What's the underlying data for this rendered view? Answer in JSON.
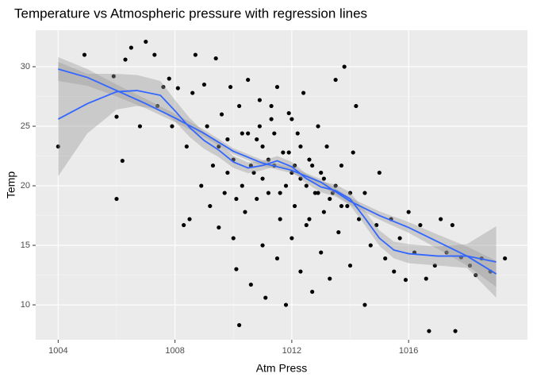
{
  "chart_data": {
    "type": "scatter",
    "title": "Temperature vs Atmospheric pressure with regression lines",
    "x_label": "Atm Press",
    "y_label": "Temp",
    "xlim": [
      1003.23,
      1020.07
    ],
    "ylim": [
      7.07,
      33.07
    ],
    "xticks": [
      1004,
      1008,
      1012,
      1016
    ],
    "yticks": [
      10,
      15,
      20,
      25,
      30
    ],
    "grid": true,
    "point_color": "#000000",
    "x": [
      1004.0,
      1004.9,
      1005.9,
      1006.0,
      1006.0,
      1006.2,
      1006.3,
      1006.5,
      1006.8,
      1007.0,
      1007.3,
      1007.4,
      1007.6,
      1007.8,
      1007.9,
      1008.1,
      1008.3,
      1008.5,
      1008.4,
      1008.6,
      1008.7,
      1008.9,
      1009.0,
      1009.1,
      1009.2,
      1009.3,
      1009.4,
      1009.5,
      1009.6,
      1009.7,
      1009.8,
      1009.9,
      1010.0,
      1010.0,
      1010.1,
      1010.2,
      1010.2,
      1010.3,
      1010.4,
      1010.5,
      1010.5,
      1010.6,
      1010.7,
      1010.8,
      1010.9,
      1011.0,
      1011.0,
      1011.1,
      1011.2,
      1011.3,
      1011.4,
      1011.5,
      1011.5,
      1011.6,
      1011.7,
      1011.8,
      1011.8,
      1011.9,
      1012.0,
      1012.0,
      1012.1,
      1012.2,
      1012.3,
      1012.3,
      1012.4,
      1012.5,
      1012.6,
      1012.7,
      1012.8,
      1012.9,
      1013.0,
      1013.0,
      1013.1,
      1013.2,
      1013.3,
      1013.4,
      1013.5,
      1013.6,
      1013.7,
      1013.8,
      1013.9,
      1014.0,
      1014.1,
      1014.2,
      1014.3,
      1014.5,
      1014.5,
      1014.7,
      1014.9,
      1015.0,
      1015.2,
      1015.4,
      1015.5,
      1015.7,
      1015.9,
      1016.0,
      1016.2,
      1016.4,
      1016.6,
      1016.7,
      1016.9,
      1017.1,
      1017.3,
      1017.5,
      1017.6,
      1017.8,
      1018.1,
      1018.3,
      1018.5,
      1018.8,
      1019.3,
      1010.6,
      1010.8,
      1011.0,
      1011.2,
      1011.4,
      1011.6,
      1011.9,
      1012.1,
      1012.3,
      1012.5,
      1012.7,
      1012.9,
      1013.1,
      1013.3,
      1013.5,
      1009.8,
      1010.3,
      1010.9,
      1011.3,
      1012.0,
      1009.5,
      1010.1,
      1013.7,
      1014.0,
      1012.6
    ],
    "y": [
      23.3,
      31.0,
      29.2,
      25.8,
      18.9,
      22.1,
      30.6,
      31.6,
      25.0,
      32.1,
      31.0,
      26.7,
      28.3,
      29.0,
      25.0,
      28.2,
      16.7,
      17.2,
      23.3,
      27.8,
      31.0,
      20.0,
      28.5,
      25.0,
      18.3,
      21.7,
      30.7,
      16.5,
      26.0,
      19.4,
      23.9,
      28.3,
      15.6,
      22.2,
      13.0,
      8.3,
      26.7,
      20.0,
      17.8,
      28.9,
      24.4,
      11.7,
      21.1,
      18.9,
      27.2,
      15.0,
      23.3,
      10.6,
      19.4,
      25.6,
      21.7,
      13.9,
      28.3,
      17.2,
      22.8,
      10.0,
      20.0,
      26.1,
      15.6,
      21.1,
      18.3,
      24.4,
      12.8,
      20.6,
      27.8,
      16.7,
      22.2,
      11.1,
      19.4,
      25.0,
      14.4,
      21.1,
      17.8,
      23.3,
      12.2,
      19.4,
      28.9,
      16.1,
      21.7,
      30.0,
      18.3,
      13.3,
      22.8,
      26.7,
      17.2,
      10.0,
      19.4,
      15.0,
      16.7,
      21.1,
      13.9,
      17.2,
      12.8,
      15.6,
      12.1,
      17.8,
      14.4,
      16.7,
      12.2,
      7.8,
      13.3,
      17.2,
      14.4,
      16.7,
      7.8,
      14.0,
      13.3,
      12.5,
      13.9,
      12.8,
      13.9,
      21.7,
      23.9,
      20.6,
      22.2,
      24.4,
      19.4,
      22.8,
      21.7,
      23.3,
      20.0,
      21.7,
      19.4,
      20.6,
      18.9,
      20.0,
      21.1,
      24.4,
      25.0,
      26.7,
      25.6,
      23.3,
      18.9,
      18.3,
      19.4,
      17.2
    ],
    "fits": [
      {
        "color": "#3366FF",
        "x": [
          1004,
          1005,
          1006,
          1007,
          1008,
          1009,
          1010,
          1011,
          1012,
          1013,
          1014,
          1015,
          1016,
          1017,
          1018,
          1019
        ],
        "y": [
          29.8,
          29.1,
          28.0,
          26.9,
          25.7,
          24.4,
          22.9,
          21.9,
          21.3,
          20.3,
          18.7,
          17.5,
          16.5,
          15.3,
          14.1,
          12.6
        ],
        "lower": [
          28.8,
          28.4,
          27.5,
          26.5,
          25.35,
          24.1,
          22.65,
          21.65,
          21.05,
          20.05,
          18.4,
          17.15,
          16.05,
          14.7,
          13.3,
          11.5
        ],
        "upper": [
          30.8,
          29.8,
          28.5,
          27.3,
          26.05,
          24.7,
          23.15,
          22.15,
          21.55,
          20.55,
          19.0,
          17.85,
          16.95,
          15.9,
          14.9,
          13.7
        ]
      },
      {
        "color": "#3366FF",
        "x": [
          1004,
          1005,
          1006,
          1006.7,
          1007.5,
          1008,
          1008.5,
          1009,
          1009.5,
          1010,
          1010.5,
          1011,
          1011.5,
          1012,
          1012.5,
          1013,
          1013.5,
          1014,
          1014.5,
          1015,
          1015.5,
          1016,
          1017,
          1018,
          1019
        ],
        "y": [
          25.6,
          26.9,
          27.9,
          28.0,
          27.6,
          26.3,
          24.9,
          23.8,
          23.0,
          22.0,
          21.5,
          21.7,
          22.1,
          21.6,
          20.6,
          19.9,
          19.6,
          18.9,
          17.3,
          15.6,
          14.6,
          14.3,
          14.1,
          14.1,
          13.6
        ],
        "lower": [
          20.8,
          24.4,
          26.4,
          26.7,
          26.4,
          25.4,
          24.1,
          23.1,
          22.4,
          21.5,
          21.05,
          21.3,
          21.7,
          21.2,
          20.2,
          19.45,
          19.1,
          18.35,
          16.7,
          14.95,
          13.9,
          13.5,
          13.3,
          13.1,
          10.6
        ],
        "upper": [
          30.4,
          29.4,
          29.4,
          29.3,
          28.8,
          27.2,
          25.7,
          24.5,
          23.6,
          22.5,
          21.95,
          22.1,
          22.5,
          22.0,
          21.0,
          20.35,
          20.1,
          19.45,
          17.9,
          16.25,
          15.3,
          15.1,
          14.9,
          15.1,
          16.6
        ]
      }
    ]
  }
}
